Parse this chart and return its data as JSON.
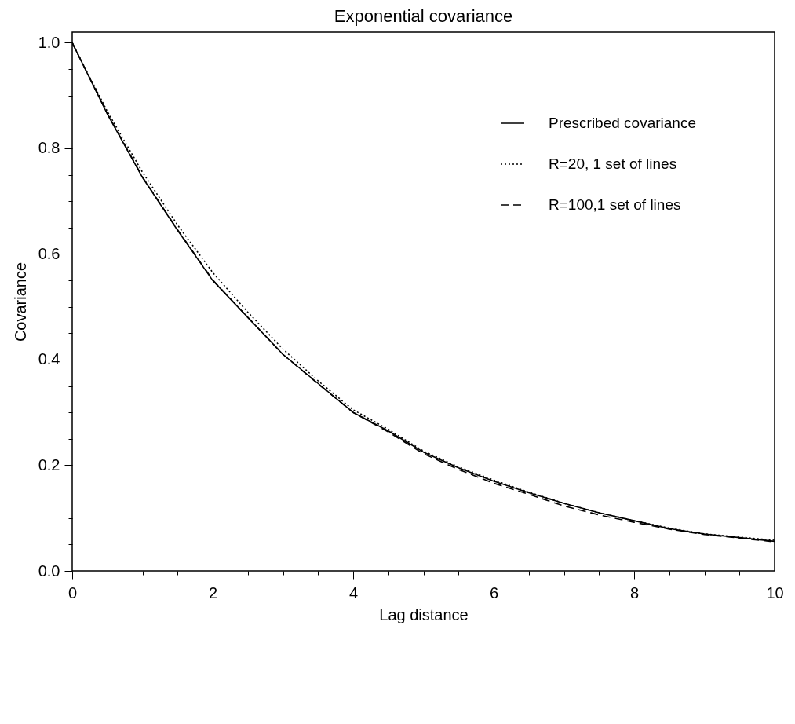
{
  "chart_data": {
    "type": "line",
    "title": "Exponential covariance",
    "xlabel": "Lag distance",
    "ylabel": "Covariance",
    "x": [
      0,
      0.5,
      1,
      1.5,
      2,
      2.5,
      3,
      3.5,
      4,
      4.5,
      5,
      5.5,
      6,
      6.5,
      7,
      7.5,
      8,
      8.5,
      9,
      9.5,
      10
    ],
    "series": [
      {
        "name": "Prescribed covariance",
        "color": "#000000",
        "line_style": "solid",
        "values": [
          1.0,
          0.865,
          0.745,
          0.645,
          0.55,
          0.48,
          0.41,
          0.355,
          0.3,
          0.265,
          0.225,
          0.195,
          0.17,
          0.148,
          0.128,
          0.11,
          0.095,
          0.08,
          0.07,
          0.063,
          0.056
        ]
      },
      {
        "name": "R=20, 1 set of lines",
        "color": "#000000",
        "line_style": "dotted",
        "values": [
          1.0,
          0.87,
          0.755,
          0.655,
          0.565,
          0.49,
          0.42,
          0.36,
          0.305,
          0.268,
          0.227,
          0.197,
          0.172,
          0.149,
          0.128,
          0.11,
          0.095,
          0.081,
          0.07,
          0.064,
          0.058
        ]
      },
      {
        "name": "R=100,1 set of lines",
        "color": "#000000",
        "line_style": "dashed",
        "values": [
          1.0,
          0.866,
          0.746,
          0.646,
          0.551,
          0.48,
          0.41,
          0.354,
          0.3,
          0.263,
          0.222,
          0.192,
          0.166,
          0.145,
          0.123,
          0.106,
          0.092,
          0.079,
          0.069,
          0.062,
          0.055
        ]
      }
    ],
    "xlim": [
      0,
      10
    ],
    "ylim": [
      0,
      1.02
    ],
    "xticks": [
      0,
      {
        "value": 0.5,
        "label": null
      },
      2,
      {
        "value": 1,
        "label": null
      },
      {
        "value": 1.5,
        "label": null
      },
      {
        "value": 2.5,
        "label": null
      },
      {
        "value": 3,
        "label": null
      },
      {
        "value": 3.5,
        "label": null
      },
      4,
      {
        "value": 4.5,
        "label": null
      },
      {
        "value": 5,
        "label": null
      },
      {
        "value": 5.5,
        "label": null
      },
      6,
      {
        "value": 6.5,
        "label": null
      },
      {
        "value": 7,
        "label": null
      },
      {
        "value": 7.5,
        "label": null
      },
      8,
      {
        "value": 8.5,
        "label": null
      },
      {
        "value": 9,
        "label": null
      },
      {
        "value": 9.5,
        "label": null
      },
      10
    ],
    "yticks": [
      {
        "value": 0,
        "label": "0.0"
      },
      {
        "value": 0.05,
        "label": null
      },
      {
        "value": 0.1,
        "label": null
      },
      {
        "value": 0.15,
        "label": null
      },
      0.2,
      {
        "value": 0.25,
        "label": null
      },
      {
        "value": 0.3,
        "label": null
      },
      {
        "value": 0.35,
        "label": null
      },
      0.4,
      {
        "value": 0.45,
        "label": null
      },
      {
        "value": 0.5,
        "label": null
      },
      {
        "value": 0.55,
        "label": null
      },
      0.6,
      {
        "value": 0.65,
        "label": null
      },
      {
        "value": 0.7,
        "label": null
      },
      {
        "value": 0.75,
        "label": null
      },
      0.8,
      {
        "value": 0.85,
        "label": null
      },
      {
        "value": 0.9,
        "label": null
      },
      {
        "value": 0.95,
        "label": null
      },
      {
        "value": 1,
        "label": "1.0"
      }
    ],
    "legend": "top right",
    "grid": false
  }
}
